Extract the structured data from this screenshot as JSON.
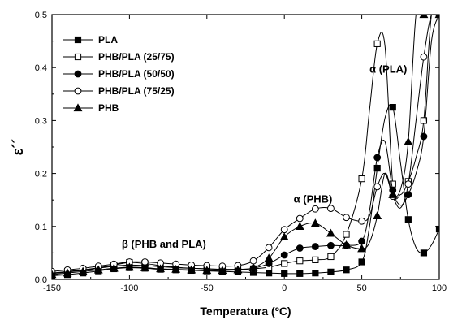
{
  "chart_data": {
    "type": "line",
    "xlabel": "Temperatura (ºC)",
    "ylabel": "ε´´",
    "xlim": [
      -150,
      100
    ],
    "ylim": [
      0,
      0.5
    ],
    "xticks": [
      "-150",
      "-100",
      "-50",
      "0",
      "50",
      "100"
    ],
    "yticks": [
      "0.0",
      "0.1",
      "0.2",
      "0.3",
      "0.4",
      "0.5"
    ],
    "grid": false,
    "legend_position": "top-left",
    "annotations": [
      {
        "text": "α (PLA)",
        "x": 55,
        "y": 0.39
      },
      {
        "text": "α  (PHB)",
        "x": 6,
        "y": 0.145
      },
      {
        "text": "β (PHB and PLA)",
        "x": -105,
        "y": 0.06
      }
    ],
    "series": [
      {
        "name": "PLA",
        "marker": "filled-square",
        "x": [
          -150,
          -140,
          -130,
          -120,
          -110,
          -100,
          -90,
          -80,
          -70,
          -60,
          -50,
          -40,
          -30,
          -20,
          -10,
          0,
          10,
          20,
          30,
          40,
          50,
          55,
          60,
          65,
          70,
          75,
          80,
          85,
          90,
          95,
          100
        ],
        "y": [
          0.007,
          0.009,
          0.012,
          0.016,
          0.02,
          0.022,
          0.021,
          0.019,
          0.018,
          0.017,
          0.016,
          0.015,
          0.014,
          0.013,
          0.012,
          0.011,
          0.011,
          0.012,
          0.014,
          0.018,
          0.033,
          0.1,
          0.21,
          0.305,
          0.325,
          0.22,
          0.113,
          0.06,
          0.05,
          0.065,
          0.095
        ]
      },
      {
        "name": "PHB/PLA (25/75)",
        "marker": "open-square",
        "x": [
          -150,
          -140,
          -130,
          -120,
          -110,
          -100,
          -90,
          -80,
          -70,
          -60,
          -50,
          -40,
          -30,
          -20,
          -10,
          0,
          10,
          20,
          30,
          40,
          50,
          55,
          60,
          65,
          70,
          75,
          80,
          85,
          90,
          95,
          100
        ],
        "y": [
          0.012,
          0.015,
          0.018,
          0.022,
          0.027,
          0.032,
          0.03,
          0.026,
          0.023,
          0.021,
          0.02,
          0.019,
          0.019,
          0.02,
          0.023,
          0.03,
          0.035,
          0.037,
          0.043,
          0.085,
          0.19,
          0.32,
          0.445,
          0.44,
          0.18,
          0.16,
          0.185,
          0.23,
          0.3,
          0.5,
          0.5
        ]
      },
      {
        "name": "PHB/PLA (50/50)",
        "marker": "filled-circle",
        "x": [
          -150,
          -140,
          -130,
          -120,
          -110,
          -100,
          -90,
          -80,
          -70,
          -60,
          -50,
          -40,
          -30,
          -20,
          -10,
          0,
          10,
          20,
          30,
          40,
          50,
          55,
          60,
          65,
          70,
          75,
          80,
          85,
          90,
          95,
          100
        ],
        "y": [
          0.011,
          0.014,
          0.017,
          0.021,
          0.025,
          0.027,
          0.026,
          0.024,
          0.022,
          0.021,
          0.02,
          0.019,
          0.019,
          0.021,
          0.03,
          0.046,
          0.059,
          0.062,
          0.064,
          0.064,
          0.072,
          0.13,
          0.23,
          0.26,
          0.168,
          0.14,
          0.16,
          0.2,
          0.27,
          0.45,
          0.5
        ]
      },
      {
        "name": "PHB/PLA (75/25)",
        "marker": "open-circle",
        "x": [
          -150,
          -140,
          -130,
          -120,
          -110,
          -100,
          -90,
          -80,
          -70,
          -60,
          -50,
          -40,
          -30,
          -20,
          -10,
          0,
          10,
          20,
          30,
          40,
          50,
          55,
          60,
          65,
          70,
          75,
          80,
          85,
          90,
          95,
          100
        ],
        "y": [
          0.015,
          0.018,
          0.021,
          0.025,
          0.029,
          0.033,
          0.033,
          0.031,
          0.029,
          0.027,
          0.026,
          0.025,
          0.026,
          0.035,
          0.06,
          0.094,
          0.115,
          0.133,
          0.134,
          0.117,
          0.11,
          0.12,
          0.175,
          0.2,
          0.157,
          0.135,
          0.18,
          0.3,
          0.42,
          0.5,
          0.5
        ]
      },
      {
        "name": "PHB",
        "marker": "filled-triangle",
        "x": [
          -150,
          -140,
          -130,
          -120,
          -110,
          -100,
          -90,
          -80,
          -70,
          -60,
          -50,
          -40,
          -30,
          -20,
          -10,
          0,
          10,
          20,
          30,
          40,
          50,
          55,
          60,
          65,
          70,
          75,
          80,
          85,
          90,
          95,
          100
        ],
        "y": [
          0.009,
          0.012,
          0.015,
          0.018,
          0.021,
          0.023,
          0.022,
          0.02,
          0.019,
          0.018,
          0.017,
          0.017,
          0.018,
          0.022,
          0.04,
          0.08,
          0.1,
          0.106,
          0.087,
          0.065,
          0.058,
          0.07,
          0.12,
          0.2,
          0.16,
          0.17,
          0.26,
          0.5,
          0.5,
          0.5,
          0.5
        ]
      }
    ]
  }
}
